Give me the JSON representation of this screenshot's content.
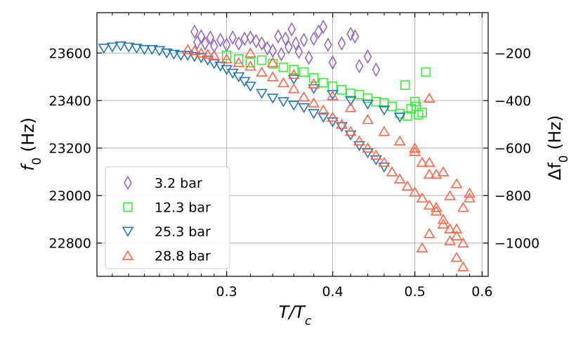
{
  "chart_data": {
    "type": "scatter",
    "xlabel": {
      "main": "T/T",
      "sub": "c"
    },
    "ylabel_left": {
      "main": "f",
      "sub": "0",
      "unit": " (Hz)"
    },
    "ylabel_right": {
      "prefix": "Δf",
      "sub": "0",
      "unit": " (Hz)"
    },
    "x_scale": "log",
    "xlim": [
      0.211,
      0.61
    ],
    "ylim_left": [
      22660,
      23770
    ],
    "y_right_offset": 23800,
    "x_ticks": [
      {
        "v": 0.3,
        "label": "0.3"
      },
      {
        "v": 0.4,
        "label": "0.4"
      },
      {
        "v": 0.5,
        "label": "0.5"
      },
      {
        "v": 0.6,
        "label": "0.6"
      }
    ],
    "y_ticks_left": [
      {
        "v": 22800,
        "label": "22800"
      },
      {
        "v": 23000,
        "label": "23000"
      },
      {
        "v": 23200,
        "label": "23200"
      },
      {
        "v": 23400,
        "label": "23400"
      },
      {
        "v": 23600,
        "label": "23600"
      }
    ],
    "y_ticks_right": [
      {
        "v": -1000,
        "label": "−1000"
      },
      {
        "v": -800,
        "label": "−800"
      },
      {
        "v": -600,
        "label": "−600"
      },
      {
        "v": -400,
        "label": "−400"
      },
      {
        "v": -200,
        "label": "−200"
      }
    ],
    "grid": true,
    "legend_position": "lower-left",
    "series": [
      {
        "name": "3.2 bar",
        "marker": "diamond",
        "color": "#9467bd",
        "points": [
          [
            0.275,
            23690
          ],
          [
            0.277,
            23645
          ],
          [
            0.28,
            23670
          ],
          [
            0.283,
            23640
          ],
          [
            0.287,
            23665
          ],
          [
            0.29,
            23630
          ],
          [
            0.295,
            23655
          ],
          [
            0.3,
            23635
          ],
          [
            0.305,
            23665
          ],
          [
            0.31,
            23640
          ],
          [
            0.315,
            23660
          ],
          [
            0.32,
            23665
          ],
          [
            0.325,
            23650
          ],
          [
            0.33,
            23640
          ],
          [
            0.335,
            23620
          ],
          [
            0.34,
            23610
          ],
          [
            0.345,
            23670
          ],
          [
            0.348,
            23595
          ],
          [
            0.352,
            23660
          ],
          [
            0.355,
            23625
          ],
          [
            0.358,
            23700
          ],
          [
            0.362,
            23640
          ],
          [
            0.365,
            23605
          ],
          [
            0.37,
            23655
          ],
          [
            0.375,
            23580
          ],
          [
            0.38,
            23660
          ],
          [
            0.385,
            23690
          ],
          [
            0.39,
            23710
          ],
          [
            0.395,
            23635
          ],
          [
            0.4,
            23560
          ],
          [
            0.41,
            23640
          ],
          [
            0.42,
            23680
          ],
          [
            0.425,
            23670
          ],
          [
            0.43,
            23545
          ],
          [
            0.44,
            23585
          ],
          [
            0.45,
            23530
          ]
        ]
      },
      {
        "name": "12.3 bar",
        "marker": "square",
        "color": "#33ee33",
        "points": [
          [
            0.3,
            23590
          ],
          [
            0.31,
            23575
          ],
          [
            0.32,
            23560
          ],
          [
            0.33,
            23570
          ],
          [
            0.34,
            23555
          ],
          [
            0.35,
            23540
          ],
          [
            0.36,
            23530
          ],
          [
            0.37,
            23520
          ],
          [
            0.38,
            23495
          ],
          [
            0.39,
            23475
          ],
          [
            0.4,
            23460
          ],
          [
            0.41,
            23445
          ],
          [
            0.42,
            23430
          ],
          [
            0.43,
            23425
          ],
          [
            0.44,
            23410
          ],
          [
            0.45,
            23395
          ],
          [
            0.46,
            23390
          ],
          [
            0.47,
            23375
          ],
          [
            0.48,
            23345
          ],
          [
            0.49,
            23335
          ],
          [
            0.495,
            23365
          ],
          [
            0.5,
            23395
          ],
          [
            0.502,
            23375
          ],
          [
            0.505,
            23340
          ],
          [
            0.51,
            23350
          ],
          [
            0.515,
            23520
          ],
          [
            0.487,
            23465
          ]
        ]
      },
      {
        "name": "25.3 bar",
        "marker": "triangle-down",
        "color": "#1f77b4",
        "points": [
          [
            0.215,
            23620
          ],
          [
            0.22,
            23625
          ],
          [
            0.225,
            23630
          ],
          [
            0.23,
            23625
          ],
          [
            0.235,
            23620
          ],
          [
            0.24,
            23615
          ],
          [
            0.245,
            23615
          ],
          [
            0.25,
            23610
          ],
          [
            0.255,
            23600
          ],
          [
            0.26,
            23595
          ],
          [
            0.265,
            23590
          ],
          [
            0.27,
            23590
          ],
          [
            0.275,
            23585
          ],
          [
            0.28,
            23580
          ],
          [
            0.285,
            23570
          ],
          [
            0.29,
            23555
          ],
          [
            0.295,
            23545
          ],
          [
            0.3,
            23530
          ],
          [
            0.305,
            23515
          ],
          [
            0.31,
            23500
          ],
          [
            0.315,
            23480
          ],
          [
            0.32,
            23460
          ],
          [
            0.33,
            23430
          ],
          [
            0.34,
            23410
          ],
          [
            0.35,
            23395
          ],
          [
            0.36,
            23380
          ],
          [
            0.37,
            23370
          ],
          [
            0.38,
            23345
          ],
          [
            0.39,
            23330
          ],
          [
            0.4,
            23310
          ],
          [
            0.41,
            23290
          ],
          [
            0.42,
            23255
          ],
          [
            0.43,
            23210
          ],
          [
            0.44,
            23180
          ],
          [
            0.45,
            23150
          ],
          [
            0.46,
            23120
          ],
          [
            0.36,
            23490
          ],
          [
            0.38,
            23450
          ],
          [
            0.4,
            23425
          ],
          [
            0.42,
            23400
          ],
          [
            0.44,
            23385
          ],
          [
            0.46,
            23360
          ],
          [
            0.48,
            23330
          ]
        ]
      },
      {
        "name": "28.8 bar",
        "marker": "triangle-up",
        "color": "#ff6347",
        "points": [
          [
            0.27,
            23615
          ],
          [
            0.275,
            23610
          ],
          [
            0.28,
            23600
          ],
          [
            0.285,
            23595
          ],
          [
            0.29,
            23590
          ],
          [
            0.3,
            23575
          ],
          [
            0.31,
            23560
          ],
          [
            0.32,
            23545
          ],
          [
            0.33,
            23520
          ],
          [
            0.34,
            23500
          ],
          [
            0.35,
            23475
          ],
          [
            0.36,
            23450
          ],
          [
            0.37,
            23415
          ],
          [
            0.38,
            23390
          ],
          [
            0.39,
            23360
          ],
          [
            0.4,
            23330
          ],
          [
            0.41,
            23300
          ],
          [
            0.42,
            23270
          ],
          [
            0.43,
            23230
          ],
          [
            0.44,
            23200
          ],
          [
            0.45,
            23170
          ],
          [
            0.46,
            23140
          ],
          [
            0.47,
            23100
          ],
          [
            0.48,
            23070
          ],
          [
            0.49,
            23040
          ],
          [
            0.5,
            23015
          ],
          [
            0.51,
            22990
          ],
          [
            0.52,
            22960
          ],
          [
            0.53,
            22935
          ],
          [
            0.54,
            22900
          ],
          [
            0.55,
            22860
          ],
          [
            0.56,
            22830
          ],
          [
            0.57,
            22800
          ],
          [
            0.32,
            23600
          ],
          [
            0.34,
            23560
          ],
          [
            0.36,
            23510
          ],
          [
            0.38,
            23470
          ],
          [
            0.4,
            23420
          ],
          [
            0.42,
            23370
          ],
          [
            0.44,
            23320
          ],
          [
            0.46,
            23270
          ],
          [
            0.48,
            23230
          ],
          [
            0.5,
            23185
          ],
          [
            0.52,
            23140
          ],
          [
            0.54,
            23100
          ],
          [
            0.56,
            23050
          ],
          [
            0.58,
            23010
          ],
          [
            0.5,
            23200
          ],
          [
            0.51,
            23140
          ],
          [
            0.52,
            23090
          ],
          [
            0.53,
            22950
          ],
          [
            0.54,
            22880
          ],
          [
            0.55,
            22810
          ],
          [
            0.56,
            22740
          ],
          [
            0.57,
            22700
          ],
          [
            0.51,
            22780
          ],
          [
            0.52,
            22840
          ],
          [
            0.53,
            23090
          ],
          [
            0.55,
            23000
          ],
          [
            0.57,
            22950
          ],
          [
            0.52,
            23410
          ],
          [
            0.58,
            22990
          ],
          [
            0.56,
            22860
          ]
        ]
      }
    ]
  }
}
